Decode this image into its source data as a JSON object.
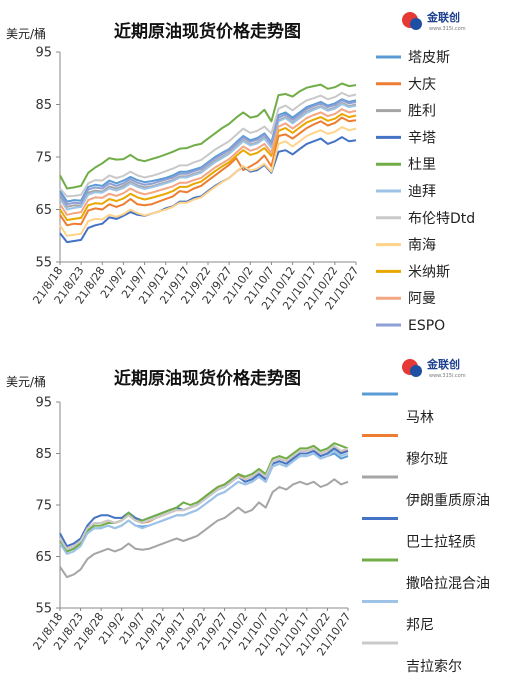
{
  "charts": [
    {
      "title": "近期原油现货价格走势图",
      "unit_label": "美元/桶",
      "logo": {
        "name": "金联创",
        "sub": "www.315i.com"
      }
    },
    {
      "title": "近期原油现货价格走势图",
      "unit_label": "美元/桶",
      "logo": {
        "name": "金联创",
        "sub": "www.315i.com"
      }
    }
  ],
  "chart_data": [
    {
      "type": "line",
      "title": "近期原油现货价格走势图",
      "ylabel": "美元/桶",
      "ylim": [
        55,
        95
      ],
      "yticks": [
        55,
        65,
        75,
        85,
        95
      ],
      "x_tick_labels": [
        "21/8/18",
        "21/8/23",
        "21/8/28",
        "21/9/2",
        "21/9/7",
        "21/9/12",
        "21/9/17",
        "21/9/22",
        "21/9/27",
        "21/10/2",
        "21/10/7",
        "21/10/12",
        "21/10/17",
        "21/10/22",
        "21/10/27"
      ],
      "x_tick_positions": [
        0,
        3,
        6,
        9,
        12,
        15,
        18,
        21,
        24,
        27,
        30,
        33,
        36,
        39,
        42
      ],
      "series": [
        {
          "name": "塔皮斯",
          "color": "#5b9bd5",
          "values": [
            68.5,
            66.5,
            66.8,
            66.7,
            69.3,
            69.7,
            69.5,
            70.5,
            70.0,
            70.5,
            71.2,
            70.6,
            70.2,
            70.4,
            70.7,
            71.0,
            71.5,
            72.2,
            72.2,
            72.6,
            73.0,
            74.0,
            75.0,
            75.8,
            76.5,
            77.8,
            79.0,
            78.2,
            78.6,
            79.5,
            77.8,
            83.0,
            83.5,
            82.5,
            83.5,
            84.5,
            85.0,
            85.5,
            84.8,
            85.2,
            86.0,
            85.5,
            85.8
          ]
        },
        {
          "name": "大庆",
          "color": "#ed7d31",
          "values": [
            64.0,
            62.0,
            62.3,
            62.2,
            64.8,
            65.2,
            65.0,
            66.0,
            65.5,
            66.0,
            67.0,
            66.0,
            65.8,
            66.0,
            66.5,
            67.0,
            67.5,
            68.5,
            68.3,
            69.0,
            69.5,
            70.5,
            71.5,
            72.5,
            73.5,
            74.8,
            72.5,
            73.2,
            74.0,
            75.3,
            73.2,
            79.0,
            79.3,
            78.5,
            79.5,
            80.5,
            81.2,
            81.8,
            81.0,
            81.5,
            82.5,
            81.8,
            82.0
          ]
        },
        {
          "name": "胜利",
          "color": "#a5a5a5",
          "values": [
            67.5,
            65.5,
            65.8,
            65.7,
            68.2,
            68.6,
            68.4,
            69.4,
            69.0,
            69.5,
            70.3,
            69.6,
            69.2,
            69.4,
            69.8,
            70.2,
            70.6,
            71.3,
            71.3,
            71.8,
            72.2,
            73.2,
            74.2,
            75.0,
            75.8,
            77.0,
            78.2,
            77.4,
            77.8,
            78.7,
            77.0,
            82.0,
            82.6,
            81.6,
            82.6,
            83.6,
            84.2,
            84.7,
            84.0,
            84.4,
            85.3,
            84.7,
            85.0
          ]
        },
        {
          "name": "辛塔",
          "color": "#4472c4",
          "values": [
            60.5,
            58.8,
            59.0,
            59.2,
            61.5,
            62.0,
            62.3,
            63.5,
            63.2,
            63.8,
            64.5,
            64.0,
            63.8,
            64.2,
            64.6,
            65.2,
            65.6,
            66.5,
            66.5,
            67.2,
            67.5,
            68.5,
            69.5,
            70.3,
            71.0,
            72.2,
            73.2,
            72.2,
            72.5,
            73.5,
            72.0,
            76.0,
            76.3,
            75.5,
            76.5,
            77.5,
            78.0,
            78.5,
            77.5,
            78.0,
            78.8,
            78.0,
            78.2
          ]
        },
        {
          "name": "杜里",
          "color": "#70ad47",
          "values": [
            71.5,
            69.0,
            69.2,
            69.5,
            72.0,
            73.0,
            73.8,
            74.8,
            74.5,
            74.6,
            75.4,
            74.5,
            74.2,
            74.6,
            75.0,
            75.5,
            76.0,
            76.6,
            76.7,
            77.2,
            77.5,
            78.5,
            79.5,
            80.5,
            81.3,
            82.5,
            83.5,
            82.5,
            82.8,
            84.0,
            81.8,
            86.8,
            87.0,
            86.5,
            87.5,
            88.2,
            88.5,
            88.8,
            88.0,
            88.3,
            89.0,
            88.5,
            88.7
          ]
        },
        {
          "name": "迪拜",
          "color": "#9dc3e6",
          "values": [
            67.0,
            65.0,
            65.3,
            65.5,
            67.8,
            68.3,
            68.2,
            69.0,
            68.6,
            69.1,
            70.0,
            69.3,
            68.9,
            69.2,
            69.6,
            70.0,
            70.4,
            71.1,
            71.1,
            71.6,
            72.0,
            73.0,
            74.0,
            74.8,
            75.6,
            76.8,
            78.0,
            77.2,
            77.6,
            78.5,
            76.8,
            81.8,
            82.4,
            81.4,
            82.4,
            83.4,
            84.0,
            84.5,
            83.8,
            84.2,
            85.1,
            84.5,
            84.8
          ]
        },
        {
          "name": "布伦特Dtd",
          "color": "#c9c9c9",
          "values": [
            69.0,
            67.5,
            67.6,
            67.8,
            70.0,
            70.6,
            70.5,
            71.5,
            71.0,
            71.4,
            72.2,
            71.5,
            71.1,
            71.4,
            71.8,
            72.3,
            72.8,
            73.4,
            73.4,
            74.0,
            74.4,
            75.4,
            76.4,
            77.2,
            78.0,
            79.2,
            80.4,
            79.6,
            80.0,
            80.8,
            79.5,
            84.2,
            84.8,
            83.9,
            84.9,
            85.8,
            86.2,
            86.7,
            86.0,
            86.4,
            87.2,
            86.6,
            86.9
          ]
        },
        {
          "name": "南海",
          "color": "#ffd38a",
          "values": [
            62.0,
            60.0,
            60.2,
            60.4,
            62.8,
            63.2,
            63.1,
            64.0,
            63.6,
            64.1,
            65.0,
            64.3,
            63.9,
            64.2,
            64.6,
            65.0,
            65.5,
            66.3,
            66.3,
            66.9,
            67.3,
            68.3,
            69.3,
            70.2,
            71.0,
            72.2,
            73.3,
            72.4,
            72.8,
            73.7,
            72.2,
            77.5,
            78.0,
            77.0,
            78.0,
            79.0,
            79.6,
            80.1,
            79.4,
            79.8,
            80.7,
            80.1,
            80.4
          ]
        },
        {
          "name": "米纳斯",
          "color": "#e8a800",
          "values": [
            65.0,
            63.0,
            63.2,
            63.4,
            65.8,
            66.2,
            66.1,
            67.0,
            66.6,
            67.1,
            68.0,
            67.3,
            66.9,
            67.2,
            67.6,
            68.0,
            68.5,
            69.3,
            69.3,
            69.9,
            70.3,
            71.3,
            72.3,
            73.2,
            74.0,
            75.2,
            76.3,
            75.4,
            75.8,
            76.7,
            75.2,
            80.0,
            80.5,
            79.6,
            80.6,
            81.6,
            82.1,
            82.6,
            81.9,
            82.3,
            83.2,
            82.6,
            82.9
          ]
        },
        {
          "name": "阿曼",
          "color": "#f4a582",
          "values": [
            66.0,
            64.0,
            64.3,
            64.5,
            66.8,
            67.3,
            67.2,
            68.0,
            67.6,
            68.1,
            69.0,
            68.3,
            67.9,
            68.2,
            68.6,
            69.0,
            69.4,
            70.1,
            70.1,
            70.6,
            71.0,
            72.0,
            73.0,
            73.8,
            74.6,
            75.8,
            77.0,
            76.2,
            76.6,
            77.5,
            75.8,
            80.8,
            81.4,
            80.4,
            81.4,
            82.4,
            83.0,
            83.5,
            82.8,
            83.2,
            84.1,
            83.5,
            83.8
          ]
        },
        {
          "name": "ESPO",
          "color": "#8e9fd6",
          "values": [
            68.0,
            66.0,
            66.3,
            66.2,
            68.8,
            69.2,
            69.0,
            70.0,
            69.5,
            70.0,
            70.8,
            70.1,
            69.7,
            69.9,
            70.3,
            70.7,
            71.1,
            71.8,
            71.8,
            72.3,
            72.7,
            73.7,
            74.7,
            75.5,
            76.3,
            77.5,
            78.7,
            77.9,
            78.3,
            79.2,
            77.5,
            82.5,
            83.1,
            82.1,
            83.1,
            84.1,
            84.7,
            85.2,
            84.5,
            84.9,
            85.8,
            85.2,
            85.5
          ]
        }
      ]
    },
    {
      "type": "line",
      "title": "近期原油现货价格走势图",
      "ylabel": "美元/桶",
      "ylim": [
        55,
        95
      ],
      "yticks": [
        55,
        65,
        75,
        85,
        95
      ],
      "x_tick_labels": [
        "21/8/18",
        "21/8/23",
        "21/8/28",
        "21/9/2",
        "21/9/7",
        "21/9/12",
        "21/9/17",
        "21/9/22",
        "21/9/27",
        "21/10/2",
        "21/10/7",
        "21/10/12",
        "21/10/17",
        "21/10/22",
        "21/10/27"
      ],
      "x_tick_positions": [
        0,
        3,
        6,
        9,
        12,
        15,
        18,
        21,
        24,
        27,
        30,
        33,
        36,
        39,
        42
      ],
      "series": [
        {
          "name": "马林",
          "color": "#5b9bd5",
          "values": [
            68.0,
            66.0,
            66.5,
            67.5,
            69.5,
            70.5,
            70.5,
            71.0,
            70.5,
            71.0,
            72.0,
            71.0,
            70.8,
            71.0,
            71.5,
            72.0,
            72.5,
            73.0,
            73.0,
            73.5,
            74.0,
            75.0,
            76.0,
            77.0,
            77.5,
            78.5,
            79.5,
            79.0,
            79.5,
            80.5,
            79.5,
            82.5,
            83.0,
            82.5,
            83.5,
            84.5,
            84.5,
            85.0,
            84.0,
            84.5,
            85.0,
            84.0,
            84.5
          ]
        },
        {
          "name": "穆尔班",
          "color": "#ed7d31",
          "values": [
            68.5,
            66.5,
            67.0,
            68.0,
            70.5,
            71.5,
            71.5,
            72.0,
            71.5,
            72.0,
            73.0,
            72.0,
            71.5,
            71.8,
            72.5,
            73.0,
            73.5,
            74.0,
            74.0,
            74.5,
            75.0,
            76.5,
            77.5,
            78.5,
            79.0,
            80.0,
            81.0,
            80.0,
            80.5,
            81.5,
            80.5,
            83.5,
            84.0,
            83.5,
            84.5,
            85.5,
            85.5,
            86.0,
            85.0,
            85.5,
            86.0,
            85.2,
            85.5
          ]
        },
        {
          "name": "伊朗重质原油",
          "color": "#a5a5a5",
          "values": [
            63.0,
            61.0,
            61.5,
            62.5,
            64.5,
            65.5,
            66.0,
            66.5,
            66.0,
            66.5,
            67.5,
            66.5,
            66.3,
            66.5,
            67.0,
            67.5,
            68.0,
            68.5,
            68.0,
            68.5,
            69.0,
            70.0,
            71.0,
            72.0,
            72.5,
            73.5,
            74.5,
            73.5,
            74.0,
            75.5,
            74.5,
            77.5,
            78.5,
            78.0,
            79.0,
            79.5,
            79.0,
            79.5,
            78.5,
            79.0,
            80.0,
            79.0,
            79.5
          ]
        },
        {
          "name": "巴士拉轻质",
          "color": "#4472c4",
          "values": [
            69.5,
            67.0,
            67.5,
            68.5,
            71.0,
            72.5,
            73.0,
            73.0,
            72.5,
            72.5,
            73.5,
            72.5,
            72.0,
            72.5,
            73.0,
            73.5,
            74.0,
            74.5,
            74.0,
            74.5,
            75.0,
            76.0,
            77.0,
            78.0,
            78.5,
            79.5,
            80.5,
            79.5,
            80.0,
            81.0,
            80.0,
            83.0,
            83.5,
            83.0,
            84.0,
            85.0,
            85.0,
            85.5,
            84.5,
            85.0,
            86.0,
            85.0,
            85.5
          ]
        },
        {
          "name": "撒哈拉混合油",
          "color": "#70ad47",
          "values": [
            68.0,
            66.0,
            66.5,
            67.5,
            70.0,
            71.0,
            71.0,
            71.5,
            71.5,
            72.0,
            73.5,
            72.0,
            72.0,
            72.5,
            73.0,
            73.5,
            74.0,
            74.5,
            75.5,
            75.0,
            75.5,
            76.5,
            77.5,
            78.5,
            79.0,
            80.0,
            81.0,
            80.5,
            81.0,
            82.0,
            81.0,
            84.0,
            84.5,
            84.0,
            85.0,
            86.0,
            86.0,
            86.5,
            85.5,
            86.0,
            87.0,
            86.5,
            86.0
          ]
        },
        {
          "name": "邦尼",
          "color": "#9dc3e6",
          "values": [
            67.5,
            65.5,
            66.0,
            67.0,
            69.5,
            70.5,
            70.5,
            71.0,
            70.5,
            71.0,
            72.0,
            71.0,
            70.5,
            71.0,
            71.5,
            72.0,
            72.5,
            73.0,
            73.0,
            73.5,
            74.0,
            75.0,
            76.0,
            77.0,
            77.5,
            78.5,
            79.5,
            79.0,
            79.5,
            80.5,
            79.5,
            82.5,
            83.0,
            82.5,
            83.5,
            84.5,
            84.5,
            85.0,
            84.0,
            84.5,
            85.5,
            84.5,
            85.0
          ]
        },
        {
          "name": "吉拉索尔",
          "color": "#c9c9c9",
          "values": [
            68.5,
            66.5,
            67.0,
            68.0,
            70.5,
            71.5,
            71.5,
            72.0,
            71.5,
            72.0,
            73.0,
            72.0,
            71.5,
            72.0,
            72.5,
            73.0,
            73.5,
            74.0,
            74.0,
            74.5,
            75.0,
            76.0,
            77.0,
            78.0,
            78.5,
            79.5,
            80.5,
            80.0,
            80.5,
            81.5,
            80.5,
            83.5,
            84.0,
            83.5,
            84.5,
            85.5,
            85.5,
            86.0,
            85.0,
            85.5,
            86.5,
            85.5,
            86.0
          ]
        }
      ]
    }
  ]
}
